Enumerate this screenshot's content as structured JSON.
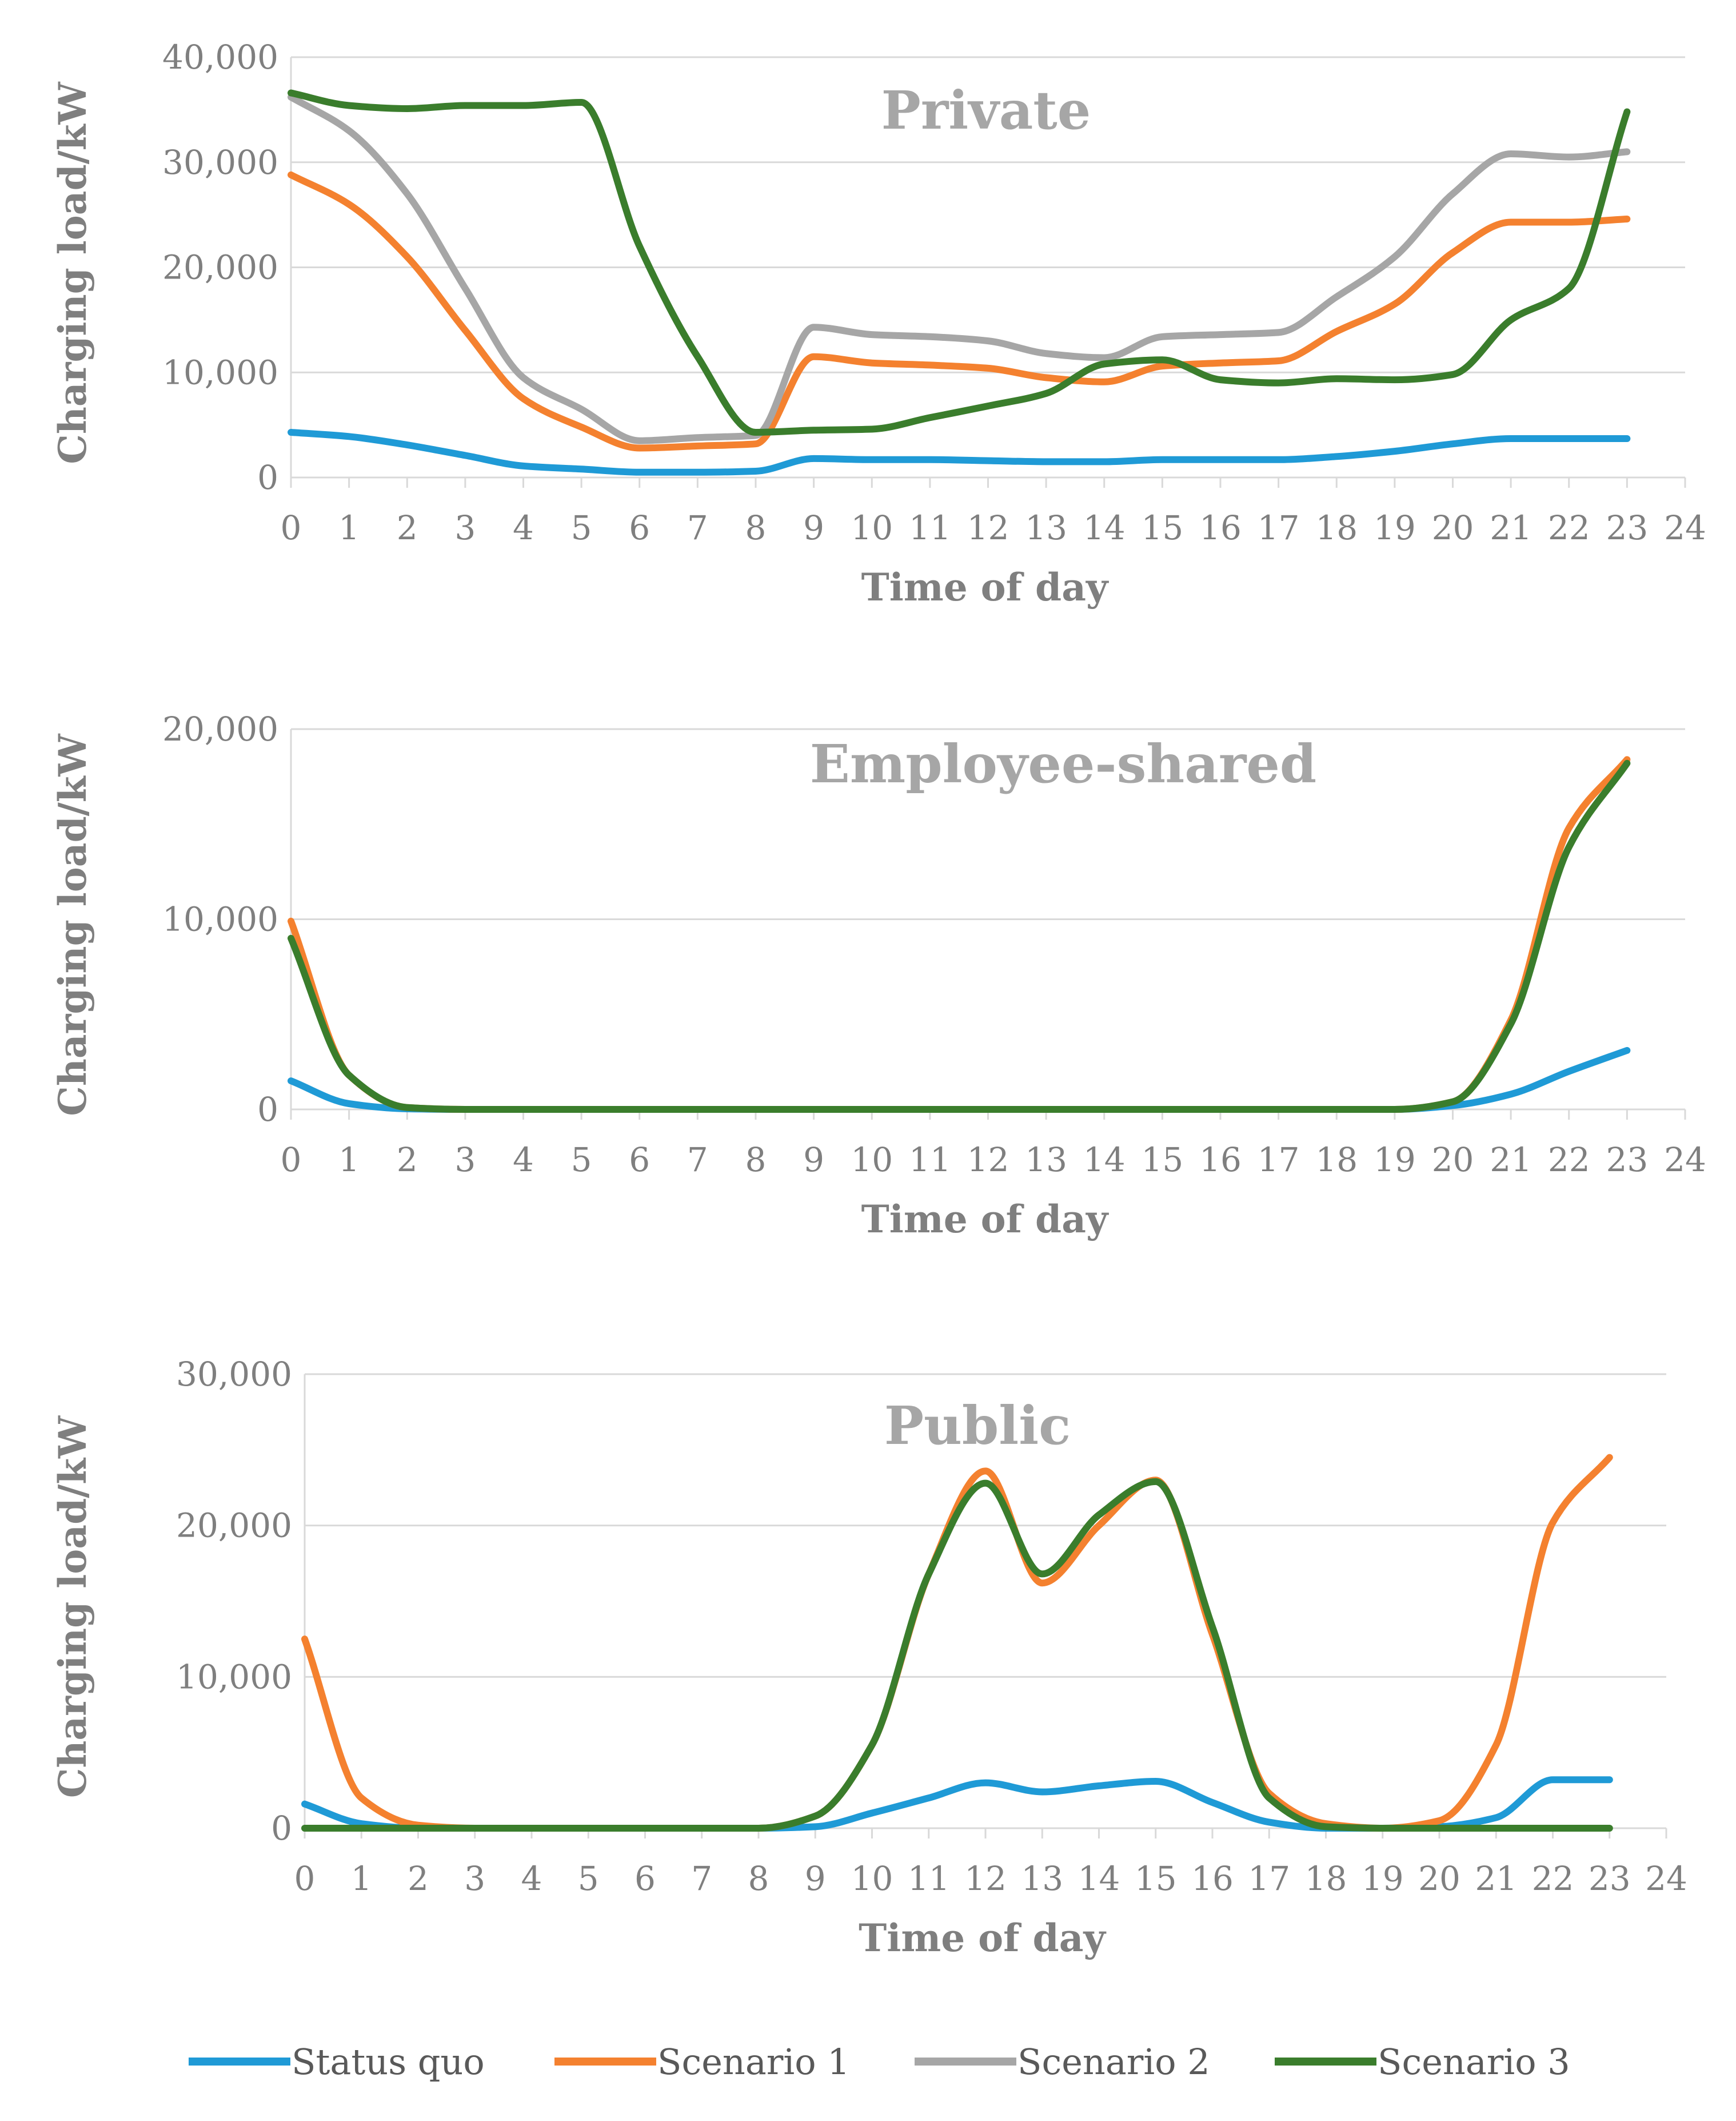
{
  "chart_data": [
    {
      "type": "line",
      "title": "Private",
      "xlabel": "Time of day",
      "ylabel": "Charging load/kW",
      "xlim": [
        0,
        24
      ],
      "ylim": [
        0,
        40000
      ],
      "x_ticks": [
        "0",
        "1",
        "2",
        "3",
        "4",
        "5",
        "6",
        "7",
        "8",
        "9",
        "10",
        "11",
        "12",
        "13",
        "14",
        "15",
        "16",
        "17",
        "18",
        "19",
        "20",
        "21",
        "22",
        "23",
        "24"
      ],
      "y_ticks": [
        "0",
        "10,000",
        "20,000",
        "30,000",
        "40,000"
      ],
      "y_tick_values": [
        0,
        10000,
        20000,
        30000,
        40000
      ],
      "grid": true,
      "x": [
        0,
        1,
        2,
        3,
        4,
        5,
        6,
        7,
        8,
        9,
        10,
        11,
        12,
        13,
        14,
        15,
        16,
        17,
        18,
        19,
        20,
        21,
        22,
        23
      ],
      "series": [
        {
          "name": "Status quo",
          "color": "#1f9ad6",
          "values": [
            4300,
            3900,
            3100,
            2100,
            1100,
            800,
            500,
            500,
            600,
            1800,
            1700,
            1700,
            1600,
            1500,
            1500,
            1700,
            1700,
            1700,
            2000,
            2500,
            3200,
            3700,
            3700,
            3700
          ]
        },
        {
          "name": "Scenario 1",
          "color": "#f4812f",
          "values": [
            28800,
            26000,
            21000,
            14000,
            7500,
            4800,
            2800,
            3000,
            3200,
            11500,
            10900,
            10700,
            10400,
            9500,
            9100,
            10600,
            10900,
            11100,
            13900,
            16500,
            21400,
            24300,
            24300,
            24600
          ]
        },
        {
          "name": "Scenario 2",
          "color": "#a6a6a6",
          "values": [
            36200,
            33000,
            27000,
            18000,
            9500,
            6500,
            3500,
            3800,
            4000,
            14300,
            13600,
            13400,
            13000,
            11800,
            11400,
            13400,
            13600,
            13800,
            17200,
            21000,
            27000,
            30800,
            30500,
            31000
          ]
        },
        {
          "name": "Scenario 3",
          "color": "#3a7d2c",
          "values": [
            36600,
            35400,
            35100,
            35400,
            35400,
            35700,
            22000,
            11500,
            4300,
            4500,
            4600,
            5700,
            6800,
            8000,
            10800,
            11200,
            9300,
            9000,
            9400,
            9300,
            9800,
            15000,
            18000,
            34800
          ]
        }
      ]
    },
    {
      "type": "line",
      "title": "Employee-shared",
      "xlabel": "Time of day",
      "ylabel": "Charging load/kW",
      "xlim": [
        0,
        24
      ],
      "ylim": [
        0,
        20000
      ],
      "x_ticks": [
        "0",
        "1",
        "2",
        "3",
        "4",
        "5",
        "6",
        "7",
        "8",
        "9",
        "10",
        "11",
        "12",
        "13",
        "14",
        "15",
        "16",
        "17",
        "18",
        "19",
        "20",
        "21",
        "22",
        "23",
        "24"
      ],
      "y_ticks": [
        "0",
        "10,000",
        "20,000"
      ],
      "y_tick_values": [
        0,
        10000,
        20000
      ],
      "grid": true,
      "x": [
        0,
        1,
        2,
        3,
        4,
        5,
        6,
        7,
        8,
        9,
        10,
        11,
        12,
        13,
        14,
        15,
        16,
        17,
        18,
        19,
        20,
        21,
        22,
        23
      ],
      "series": [
        {
          "name": "Status quo",
          "color": "#1f9ad6",
          "values": [
            1500,
            300,
            30,
            0,
            0,
            0,
            0,
            0,
            0,
            0,
            0,
            0,
            0,
            0,
            0,
            0,
            0,
            0,
            0,
            0,
            200,
            800,
            2000,
            3100
          ]
        },
        {
          "name": "Scenario 1",
          "color": "#f4812f",
          "values": [
            9900,
            1800,
            100,
            0,
            0,
            0,
            0,
            0,
            0,
            0,
            0,
            0,
            0,
            0,
            0,
            0,
            0,
            0,
            0,
            0,
            400,
            4700,
            14800,
            18400
          ]
        },
        {
          "name": "Scenario 3",
          "color": "#3a7d2c",
          "values": [
            9000,
            1800,
            100,
            0,
            0,
            0,
            0,
            0,
            0,
            0,
            0,
            0,
            0,
            0,
            0,
            0,
            0,
            0,
            0,
            0,
            400,
            4500,
            13800,
            18200
          ]
        }
      ]
    },
    {
      "type": "line",
      "title": "Public",
      "xlabel": "Time of day",
      "ylabel": "Charging load/kW",
      "xlim": [
        0,
        24
      ],
      "ylim": [
        0,
        30000
      ],
      "x_ticks": [
        "0",
        "1",
        "2",
        "3",
        "4",
        "5",
        "6",
        "7",
        "8",
        "9",
        "10",
        "11",
        "12",
        "13",
        "14",
        "15",
        "16",
        "17",
        "18",
        "19",
        "20",
        "21",
        "22",
        "23",
        "24"
      ],
      "y_ticks": [
        "0",
        "10,000",
        "20,000",
        "30,000"
      ],
      "y_tick_values": [
        0,
        10000,
        20000,
        30000
      ],
      "grid": true,
      "x": [
        0,
        1,
        2,
        3,
        4,
        5,
        6,
        7,
        8,
        9,
        10,
        11,
        12,
        13,
        14,
        15,
        16,
        17,
        18,
        19,
        20,
        21,
        22,
        23
      ],
      "series": [
        {
          "name": "Status quo",
          "color": "#1f9ad6",
          "values": [
            1600,
            300,
            0,
            0,
            0,
            0,
            0,
            0,
            0,
            100,
            1000,
            2000,
            3000,
            2400,
            2800,
            3100,
            1700,
            400,
            0,
            0,
            100,
            700,
            3200,
            3200
          ]
        },
        {
          "name": "Scenario 1",
          "color": "#f4812f",
          "values": [
            12500,
            2000,
            200,
            0,
            0,
            0,
            0,
            0,
            0,
            800,
            5500,
            16800,
            23600,
            16200,
            20000,
            23000,
            12800,
            2300,
            300,
            0,
            500,
            5500,
            20200,
            24500
          ]
        },
        {
          "name": "Scenario 3",
          "color": "#3a7d2c",
          "values": [
            0,
            0,
            0,
            0,
            0,
            0,
            0,
            0,
            0,
            800,
            5500,
            16800,
            22800,
            16800,
            20700,
            22900,
            13300,
            2000,
            100,
            0,
            0,
            0,
            0,
            0
          ]
        }
      ]
    }
  ],
  "legend": [
    {
      "label": "Status quo",
      "color": "#1f9ad6"
    },
    {
      "label": "Scenario 1",
      "color": "#f4812f"
    },
    {
      "label": "Scenario 2",
      "color": "#a6a6a6"
    },
    {
      "label": "Scenario 3",
      "color": "#3a7d2c"
    }
  ]
}
